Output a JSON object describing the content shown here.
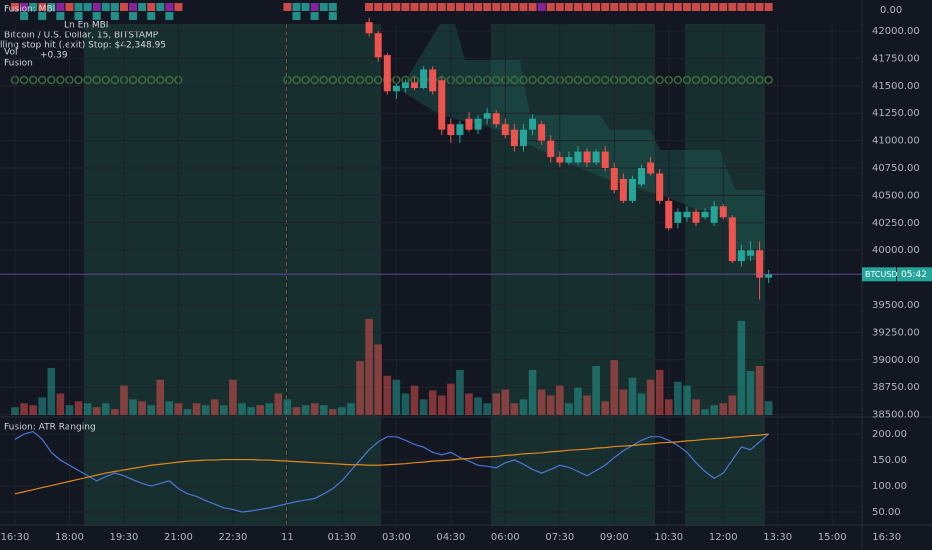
{
  "chart_data": {
    "type": "candlestick",
    "title": "Bitcoin / U.S. Dollar, 15, BITSTAMP",
    "indicator_mbi": "Fusion: MBI",
    "mbi_legend": "Ln En MBI",
    "mbi_value": "0.00",
    "stop_text": "lling stop hit (.exit) Stop: $42,348.95",
    "change": "+0.39",
    "fusion": "Fusion",
    "vol": "Vol",
    "symbol": "BTCUSD",
    "countdown": "05:42",
    "up_color": "#26a69a",
    "down_color": "#ef5350",
    "ylim": [
      38478,
      42283
    ],
    "yticks": [
      {
        "value": 42000,
        "label": "42000.00"
      },
      {
        "value": 41750,
        "label": "41750.00"
      },
      {
        "value": 41500,
        "label": "41500.00"
      },
      {
        "value": 41250,
        "label": "41250.00"
      },
      {
        "value": 41000,
        "label": "41000.00"
      },
      {
        "value": 40750,
        "label": "40750.00"
      },
      {
        "value": 40500,
        "label": "40500.00"
      },
      {
        "value": 40250,
        "label": "40250.00"
      },
      {
        "value": 40000,
        "label": "40000.00"
      },
      {
        "value": 39500,
        "label": "39500.00"
      },
      {
        "value": 39250,
        "label": "39250.00"
      },
      {
        "value": 39000,
        "label": "39000.00"
      },
      {
        "value": 38750,
        "label": "38750.00"
      },
      {
        "value": 38500,
        "label": "38500.00"
      }
    ],
    "xlim": [
      -1.65,
      100.99
    ],
    "xticks": [
      {
        "value": 0,
        "label": "16:30"
      },
      {
        "value": 6,
        "label": "18:00"
      },
      {
        "value": 12,
        "label": "19:30"
      },
      {
        "value": 18,
        "label": "21:00"
      },
      {
        "value": 24,
        "label": "22:30"
      },
      {
        "value": 30,
        "label": "11"
      },
      {
        "value": 36,
        "label": "01:30"
      },
      {
        "value": 42,
        "label": "03:00"
      },
      {
        "value": 48,
        "label": "04:30"
      },
      {
        "value": 54,
        "label": "06:00"
      },
      {
        "value": 60,
        "label": "07:30"
      },
      {
        "value": 66,
        "label": "09:00"
      },
      {
        "value": 72,
        "label": "10:30"
      },
      {
        "value": 78,
        "label": "12:00"
      },
      {
        "value": 84,
        "label": "13:30"
      },
      {
        "value": 90,
        "label": "15:00"
      },
      {
        "value": 96,
        "label": "16:30"
      }
    ],
    "ohlc": [
      null,
      null,
      null,
      null,
      null,
      null,
      null,
      null,
      null,
      null,
      null,
      null,
      null,
      null,
      null,
      null,
      null,
      null,
      null,
      null,
      null,
      null,
      null,
      null,
      null,
      null,
      null,
      null,
      null,
      null,
      null,
      null,
      null,
      null,
      null,
      null,
      null,
      null,
      null,
      [
        42080,
        42120,
        41950,
        41980
      ],
      [
        41980,
        42000,
        41720,
        41760
      ],
      [
        41780,
        41800,
        41420,
        41450
      ],
      [
        41450,
        41520,
        41380,
        41500
      ],
      [
        41480,
        41560,
        41440,
        41530
      ],
      [
        41530,
        41580,
        41460,
        41480
      ],
      [
        41480,
        41680,
        41470,
        41650
      ],
      [
        41650,
        41680,
        41420,
        41450
      ],
      [
        41550,
        41580,
        41050,
        41100
      ],
      [
        41150,
        41200,
        40980,
        41050
      ],
      [
        41050,
        41180,
        40980,
        41150
      ],
      [
        41200,
        41260,
        41080,
        41100
      ],
      [
        41100,
        41230,
        41060,
        41200
      ],
      [
        41200,
        41300,
        41150,
        41250
      ],
      [
        41250,
        41280,
        41120,
        41150
      ],
      [
        41150,
        41200,
        41020,
        41050
      ],
      [
        41100,
        41150,
        40900,
        40950
      ],
      [
        40950,
        41150,
        40900,
        41100
      ],
      [
        41100,
        41240,
        41050,
        41200
      ],
      [
        41150,
        41180,
        40960,
        41000
      ],
      [
        41000,
        41050,
        40800,
        40850
      ],
      [
        40850,
        40900,
        40760,
        40800
      ],
      [
        40800,
        40900,
        40780,
        40850
      ],
      [
        40800,
        40950,
        40780,
        40900
      ],
      [
        40900,
        40930,
        40760,
        40800
      ],
      [
        40800,
        40920,
        40780,
        40900
      ],
      [
        40900,
        40950,
        40720,
        40750
      ],
      [
        40750,
        40800,
        40520,
        40550
      ],
      [
        40650,
        40700,
        40430,
        40450
      ],
      [
        40450,
        40680,
        40430,
        40650
      ],
      [
        40600,
        40780,
        40580,
        40750
      ],
      [
        40800,
        40850,
        40680,
        40700
      ],
      [
        40700,
        40740,
        40420,
        40450
      ],
      [
        40450,
        40480,
        40180,
        40200
      ],
      [
        40250,
        40380,
        40200,
        40350
      ],
      [
        40300,
        40400,
        40260,
        40350
      ],
      [
        40350,
        40380,
        40220,
        40250
      ],
      [
        40300,
        40380,
        40280,
        40350
      ],
      [
        40250,
        40450,
        40220,
        40400
      ],
      [
        40400,
        40420,
        40280,
        40300
      ],
      [
        40300,
        40320,
        39880,
        39900
      ],
      [
        39900,
        40050,
        39850,
        40000
      ],
      [
        39950,
        40080,
        39900,
        40000
      ],
      [
        40000,
        40080,
        39550,
        39750
      ],
      [
        39750,
        39820,
        39700,
        39780
      ]
    ],
    "volume": [
      8,
      12,
      10,
      18,
      48,
      22,
      10,
      14,
      12,
      8,
      12,
      6,
      30,
      16,
      14,
      10,
      36,
      14,
      12,
      6,
      12,
      10,
      16,
      10,
      36,
      12,
      8,
      10,
      12,
      22,
      16,
      8,
      10,
      12,
      10,
      6,
      8,
      12,
      55,
      98,
      72,
      40,
      36,
      22,
      30,
      16,
      25,
      20,
      32,
      46,
      22,
      18,
      12,
      22,
      26,
      12,
      16,
      46,
      26,
      20,
      30,
      12,
      28,
      20,
      50,
      14,
      56,
      26,
      38,
      22,
      36,
      46,
      16,
      34,
      30,
      16,
      6,
      10,
      12,
      20,
      96,
      45,
      50,
      14
    ],
    "volume_up": [
      true,
      false,
      false,
      true,
      true,
      false,
      true,
      false,
      true,
      false,
      true,
      false,
      false,
      true,
      false,
      true,
      false,
      true,
      false,
      true,
      false,
      true,
      false,
      true,
      false,
      true,
      true,
      false,
      true,
      false,
      true,
      false,
      true,
      false,
      true,
      false,
      true,
      true,
      false,
      false,
      false,
      false,
      true,
      true,
      false,
      true,
      false,
      false,
      false,
      true,
      false,
      true,
      true,
      false,
      false,
      false,
      true,
      true,
      false,
      false,
      false,
      true,
      true,
      false,
      true,
      false,
      false,
      false,
      true,
      true,
      false,
      false,
      false,
      true,
      true,
      false,
      true,
      true,
      false,
      false,
      true,
      true,
      false,
      true
    ],
    "volume_lim": [
      0,
      100
    ],
    "atr": {
      "title": "Fusion: ATR Ranging",
      "ylim": [
        25,
        231
      ],
      "yticks": [
        {
          "value": 200,
          "label": "200.00"
        },
        {
          "value": 150,
          "label": "150.00"
        },
        {
          "value": 100,
          "label": "100.00"
        },
        {
          "value": 50,
          "label": "50.00"
        }
      ],
      "series": [
        {
          "color": "#4a78d6",
          "values": [
            190,
            200,
            205,
            190,
            165,
            150,
            140,
            130,
            120,
            110,
            118,
            125,
            120,
            112,
            105,
            100,
            105,
            110,
            95,
            85,
            80,
            72,
            65,
            58,
            55,
            50,
            52,
            55,
            58,
            62,
            66,
            70,
            73,
            76,
            85,
            95,
            110,
            130,
            150,
            170,
            185,
            195,
            195,
            188,
            180,
            175,
            165,
            160,
            165,
            155,
            148,
            140,
            138,
            135,
            145,
            150,
            142,
            132,
            125,
            132,
            140,
            136,
            128,
            120,
            130,
            140,
            155,
            168,
            178,
            188,
            195,
            195,
            188,
            178,
            165,
            145,
            128,
            115,
            125,
            150,
            175,
            170,
            185,
            200
          ]
        },
        {
          "color": "#e08a1e",
          "values": [
            85,
            89,
            93,
            97,
            101,
            105,
            109,
            113,
            117,
            121,
            125,
            128,
            131,
            134,
            137,
            140,
            142,
            144,
            146,
            148,
            149,
            150,
            150,
            151,
            151,
            151,
            151,
            150,
            150,
            149,
            148,
            147,
            146,
            145,
            144,
            143,
            142,
            141,
            141,
            140,
            140,
            141,
            142,
            143,
            145,
            146,
            148,
            149,
            150,
            152,
            153,
            155,
            156,
            157,
            159,
            160,
            162,
            163,
            164,
            166,
            167,
            169,
            170,
            171,
            173,
            174,
            176,
            177,
            178,
            180,
            181,
            183,
            184,
            185,
            187,
            188,
            190,
            191,
            192,
            194,
            195,
            197,
            198,
            200
          ]
        }
      ]
    }
  }
}
